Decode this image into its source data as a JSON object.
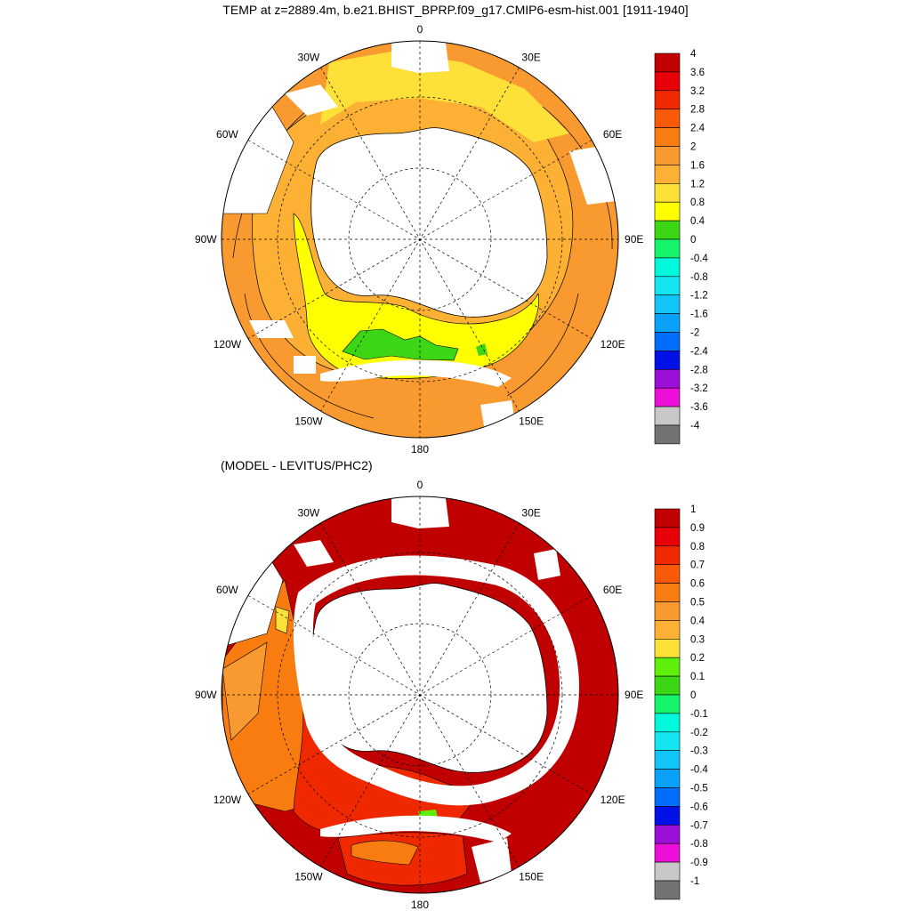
{
  "titles": {
    "main": "TEMP at z=2889.4m, b.e21.BHIST_BPRP.f09_g17.CMIP6-esm-hist.001 [1911-1940]",
    "diff": "(MODEL - LEVITUS/PHC2)"
  },
  "lon_labels": [
    "0",
    "30E",
    "60E",
    "90E",
    "120E",
    "150E",
    "180",
    "150W",
    "120W",
    "90W",
    "60W",
    "30W"
  ],
  "colors": {
    "temp": [
      "#737373",
      "#c8c8c8",
      "#eb10d8",
      "#9a10d8",
      "#0011e8",
      "#006ef8",
      "#0aa2f8",
      "#13c4f8",
      "#12e4f0",
      "#00f8dc",
      "#14f46c",
      "#3dd614",
      "#ffff00",
      "#fde038",
      "#fcb034",
      "#f89a30",
      "#f87c10",
      "#f85a08",
      "#f02800",
      "#e80008",
      "#c00000"
    ],
    "diff": [
      "#737373",
      "#c8c8c8",
      "#eb10d8",
      "#9a10d8",
      "#0011e8",
      "#006ef8",
      "#0aa2f8",
      "#13c4f8",
      "#12e4f0",
      "#00f8dc",
      "#14f46c",
      "#3dd614",
      "#5ef00a",
      "#fde038",
      "#fcb034",
      "#f89a30",
      "#f87c10",
      "#f85a08",
      "#f02800",
      "#e80008",
      "#c00000"
    ],
    "land": "#ffffff",
    "outline": "#000000"
  },
  "chart_data": [
    {
      "type": "heatmap",
      "title": "TEMP at z=2889.4m, b.e21.BHIST_BPRP.f09_g17.CMIP6-esm-hist.001 [1911-1940]",
      "projection": "south polar stereographic",
      "colorbar_levels": [
        "4",
        "3.6",
        "3.2",
        "2.8",
        "2.4",
        "2",
        "1.6",
        "1.2",
        "0.8",
        "0.4",
        "0",
        "-0.4",
        "-0.8",
        "-1.2",
        "-1.6",
        "-2",
        "-2.4",
        "-2.8",
        "-3.2",
        "-3.6",
        "-4"
      ],
      "range": [
        -4,
        4
      ],
      "approx_field_by_sector": [
        {
          "lon": "0-60E (Weddell / south of Africa)",
          "value": 1.8
        },
        {
          "lon": "60E-120E (Indian sector)",
          "value": 2.3
        },
        {
          "lon": "120E-150E",
          "value": 2.4
        },
        {
          "lon": "150E-180 near Ross Sea",
          "value": 0.6
        },
        {
          "lon": "180-150W (Ross gyre)",
          "value": 0.5
        },
        {
          "lon": "150W-90W (Amundsen/Bellingshausen)",
          "value": 1.4
        },
        {
          "lon": "90W-60W (Drake Passage)",
          "value": 2.2
        }
      ]
    },
    {
      "type": "heatmap",
      "title": "(MODEL - LEVITUS/PHC2)",
      "projection": "south polar stereographic",
      "colorbar_levels": [
        "1",
        "0.9",
        "0.8",
        "0.7",
        "0.6",
        "0.5",
        "0.4",
        "0.3",
        "0.2",
        "0.1",
        "0",
        "-0.1",
        "-0.2",
        "-0.3",
        "-0.4",
        "-0.5",
        "-0.6",
        "-0.7",
        "-0.8",
        "-0.9",
        "-1"
      ],
      "range": [
        -1,
        1
      ],
      "approx_field_by_sector": [
        {
          "lon": "30W-150E (Atlantic and Indian sectors)",
          "value": 1.0
        },
        {
          "lon": "150E-180 near Ross Sea",
          "value": 0.8
        },
        {
          "lon": "180-150W",
          "value": 0.75
        },
        {
          "lon": "150W-120W",
          "value": 0.7
        },
        {
          "lon": "120W-60W (Pacific sector)",
          "value": 0.55
        }
      ]
    }
  ]
}
